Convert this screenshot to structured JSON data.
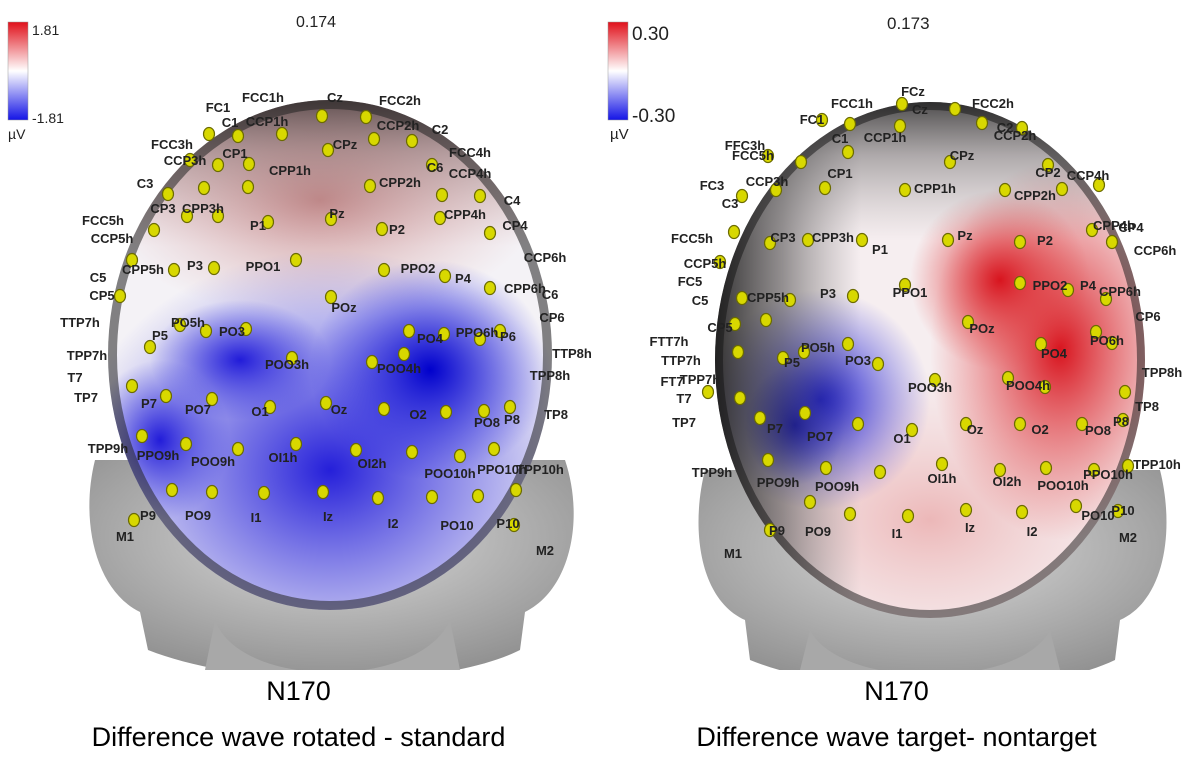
{
  "panels": [
    {
      "id": "left",
      "time": "0.174",
      "scale": {
        "max": "1.81",
        "min": "-1.81",
        "unit": "µV"
      },
      "component": "N170",
      "caption": "Difference wave rotated - standard",
      "electrodes": [
        [
          "FCC1h",
          263,
          102
        ],
        [
          "Cz",
          335,
          102
        ],
        [
          "FCC2h",
          400,
          105
        ],
        [
          "FC1",
          218,
          112
        ],
        [
          "C1",
          230,
          127
        ],
        [
          "CCP1h",
          267,
          126
        ],
        [
          "CCP2h",
          398,
          130
        ],
        [
          "C2",
          440,
          134
        ],
        [
          "FCC3h",
          172,
          149
        ],
        [
          "CPz",
          345,
          149
        ],
        [
          "CCP3h",
          185,
          165
        ],
        [
          "CP1",
          235,
          158
        ],
        [
          "FCC4h",
          470,
          157
        ],
        [
          "C6",
          435,
          172
        ],
        [
          "CPP1h",
          290,
          175
        ],
        [
          "CCP4h",
          470,
          178
        ],
        [
          "C3",
          145,
          188
        ],
        [
          "CPP2h",
          400,
          187
        ],
        [
          "C4",
          512,
          205
        ],
        [
          "FCC5h",
          103,
          225
        ],
        [
          "CP3",
          163,
          213
        ],
        [
          "CPP3h",
          203,
          213
        ],
        [
          "P1",
          258,
          230
        ],
        [
          "Pz",
          337,
          218
        ],
        [
          "P2",
          397,
          234
        ],
        [
          "CPP4h",
          465,
          219
        ],
        [
          "CP4",
          515,
          230
        ],
        [
          "CCP5h",
          112,
          243
        ],
        [
          "CCP6h",
          545,
          262
        ],
        [
          "C5",
          98,
          282
        ],
        [
          "CPP5h",
          143,
          274
        ],
        [
          "P3",
          195,
          270
        ],
        [
          "PPO1",
          263,
          271
        ],
        [
          "PPO2",
          418,
          273
        ],
        [
          "P4",
          463,
          283
        ],
        [
          "CPP6h",
          525,
          293
        ],
        [
          "C6",
          550,
          299
        ],
        [
          "CP5",
          102,
          300
        ],
        [
          "PO5h",
          188,
          327
        ],
        [
          "POz",
          344,
          312
        ],
        [
          "CP6",
          552,
          322
        ],
        [
          "TTP7h",
          80,
          327
        ],
        [
          "P5",
          160,
          340
        ],
        [
          "PO3",
          232,
          336
        ],
        [
          "PO4",
          430,
          343
        ],
        [
          "PPO6h",
          477,
          337
        ],
        [
          "P6",
          508,
          341
        ],
        [
          "TPP7h",
          87,
          360
        ],
        [
          "TTP8h",
          572,
          358
        ],
        [
          "POO3h",
          287,
          369
        ],
        [
          "POO4h",
          399,
          373
        ],
        [
          "T7",
          75,
          382
        ],
        [
          "TPP8h",
          550,
          380
        ],
        [
          "TP7",
          86,
          402
        ],
        [
          "P7",
          149,
          408
        ],
        [
          "PO7",
          198,
          414
        ],
        [
          "O1",
          260,
          416
        ],
        [
          "Oz",
          339,
          414
        ],
        [
          "O2",
          418,
          419
        ],
        [
          "PO8",
          487,
          427
        ],
        [
          "P8",
          512,
          424
        ],
        [
          "TP8",
          556,
          419
        ],
        [
          "TPP9h",
          108,
          453
        ],
        [
          "PPO9h",
          158,
          460
        ],
        [
          "POO9h",
          213,
          466
        ],
        [
          "OI1h",
          283,
          462
        ],
        [
          "OI2h",
          372,
          468
        ],
        [
          "POO10h",
          450,
          478
        ],
        [
          "PPO10h",
          502,
          474
        ],
        [
          "TPP10h",
          540,
          474
        ],
        [
          "P9",
          148,
          520
        ],
        [
          "PO9",
          198,
          520
        ],
        [
          "I1",
          256,
          522
        ],
        [
          "Iz",
          328,
          521
        ],
        [
          "I2",
          393,
          528
        ],
        [
          "PO10",
          457,
          530
        ],
        [
          "P10",
          508,
          528
        ],
        [
          "M1",
          125,
          541
        ],
        [
          "M2",
          545,
          555
        ]
      ],
      "sensor_dots": [
        [
          322,
          116
        ],
        [
          366,
          117
        ],
        [
          209,
          134
        ],
        [
          238,
          136
        ],
        [
          282,
          134
        ],
        [
          374,
          139
        ],
        [
          412,
          141
        ],
        [
          190,
          160
        ],
        [
          218,
          165
        ],
        [
          249,
          164
        ],
        [
          328,
          150
        ],
        [
          432,
          165
        ],
        [
          168,
          194
        ],
        [
          204,
          188
        ],
        [
          248,
          187
        ],
        [
          370,
          186
        ],
        [
          442,
          195
        ],
        [
          480,
          196
        ],
        [
          154,
          230
        ],
        [
          187,
          216
        ],
        [
          218,
          216
        ],
        [
          268,
          222
        ],
        [
          331,
          219
        ],
        [
          382,
          229
        ],
        [
          440,
          218
        ],
        [
          490,
          233
        ],
        [
          132,
          260
        ],
        [
          174,
          270
        ],
        [
          214,
          268
        ],
        [
          296,
          260
        ],
        [
          384,
          270
        ],
        [
          445,
          276
        ],
        [
          490,
          288
        ],
        [
          120,
          296
        ],
        [
          180,
          325
        ],
        [
          206,
          331
        ],
        [
          246,
          329
        ],
        [
          331,
          297
        ],
        [
          409,
          331
        ],
        [
          444,
          334
        ],
        [
          480,
          339
        ],
        [
          500,
          331
        ],
        [
          150,
          347
        ],
        [
          292,
          358
        ],
        [
          372,
          362
        ],
        [
          404,
          354
        ],
        [
          132,
          386
        ],
        [
          166,
          396
        ],
        [
          212,
          399
        ],
        [
          270,
          407
        ],
        [
          326,
          403
        ],
        [
          384,
          409
        ],
        [
          446,
          412
        ],
        [
          484,
          411
        ],
        [
          510,
          407
        ],
        [
          142,
          436
        ],
        [
          186,
          444
        ],
        [
          238,
          449
        ],
        [
          296,
          444
        ],
        [
          356,
          450
        ],
        [
          412,
          452
        ],
        [
          460,
          456
        ],
        [
          494,
          449
        ],
        [
          172,
          490
        ],
        [
          212,
          492
        ],
        [
          264,
          493
        ],
        [
          323,
          492
        ],
        [
          378,
          498
        ],
        [
          432,
          497
        ],
        [
          478,
          496
        ],
        [
          516,
          490
        ],
        [
          514,
          525
        ],
        [
          134,
          520
        ]
      ]
    },
    {
      "id": "right",
      "time": "0.173",
      "scale": {
        "max": "0.30",
        "min": "-0.30",
        "unit": "µV"
      },
      "component": "N170",
      "caption": "Difference wave target- nontarget",
      "electrodes": [
        [
          "FCz",
          913,
          96
        ],
        [
          "FCC1h",
          852,
          108
        ],
        [
          "Cz",
          920,
          114
        ],
        [
          "FCC2h",
          993,
          108
        ],
        [
          "FC1",
          812,
          124
        ],
        [
          "C1",
          840,
          143
        ],
        [
          "CCP1h",
          885,
          142
        ],
        [
          "CCP2h",
          1015,
          140
        ],
        [
          "C2",
          1005,
          132
        ],
        [
          "FFC3h",
          745,
          150
        ],
        [
          "FCC5h",
          753,
          160
        ],
        [
          "CPz",
          962,
          160
        ],
        [
          "FC3",
          712,
          190
        ],
        [
          "CCP3h",
          767,
          186
        ],
        [
          "CP1",
          840,
          178
        ],
        [
          "CPP1h",
          935,
          193
        ],
        [
          "CP2",
          1048,
          177
        ],
        [
          "CCP4h",
          1088,
          180
        ],
        [
          "CPP2h",
          1035,
          200
        ],
        [
          "C3",
          730,
          208
        ],
        [
          "CPP4h",
          1114,
          230
        ],
        [
          "CP4",
          1131,
          232
        ],
        [
          "FCC5h",
          692,
          243
        ],
        [
          "CP3",
          783,
          242
        ],
        [
          "CPP3h",
          833,
          242
        ],
        [
          "P1",
          880,
          254
        ],
        [
          "Pz",
          965,
          240
        ],
        [
          "P2",
          1045,
          245
        ],
        [
          "CCP6h",
          1155,
          255
        ],
        [
          "CCP5h",
          705,
          268
        ],
        [
          "FC5",
          690,
          286
        ],
        [
          "CPP5h",
          768,
          302
        ],
        [
          "P3",
          828,
          298
        ],
        [
          "PPO1",
          910,
          297
        ],
        [
          "PPO2",
          1050,
          290
        ],
        [
          "P4",
          1088,
          290
        ],
        [
          "CPP6h",
          1120,
          296
        ],
        [
          "C5",
          700,
          305
        ],
        [
          "CP5",
          720,
          332
        ],
        [
          "CP6",
          1148,
          321
        ],
        [
          "POz",
          982,
          333
        ],
        [
          "FTT7h",
          669,
          346
        ],
        [
          "PO5h",
          818,
          352
        ],
        [
          "PO3",
          858,
          365
        ],
        [
          "PO6h",
          1107,
          345
        ],
        [
          "TTP7h",
          681,
          365
        ],
        [
          "P5",
          792,
          367
        ],
        [
          "PO4",
          1054,
          358
        ],
        [
          "FT7",
          672,
          386
        ],
        [
          "TPP7h",
          700,
          384
        ],
        [
          "POO3h",
          930,
          392
        ],
        [
          "POO4h",
          1028,
          390
        ],
        [
          "TPP8h",
          1162,
          377
        ],
        [
          "T7",
          684,
          403
        ],
        [
          "TP8",
          1147,
          411
        ],
        [
          "TP7",
          684,
          427
        ],
        [
          "P7",
          775,
          433
        ],
        [
          "PO7",
          820,
          441
        ],
        [
          "O1",
          902,
          443
        ],
        [
          "Oz",
          975,
          434
        ],
        [
          "O2",
          1040,
          434
        ],
        [
          "PO8",
          1098,
          435
        ],
        [
          "P8",
          1121,
          426
        ],
        [
          "TPP10h",
          1157,
          469
        ],
        [
          "TPP9h",
          712,
          477
        ],
        [
          "PPO9h",
          778,
          487
        ],
        [
          "POO9h",
          837,
          491
        ],
        [
          "OI1h",
          942,
          483
        ],
        [
          "OI2h",
          1007,
          486
        ],
        [
          "POO10h",
          1063,
          490
        ],
        [
          "PPO10h",
          1108,
          479
        ],
        [
          "P9",
          777,
          535
        ],
        [
          "PO9",
          818,
          536
        ],
        [
          "I1",
          897,
          538
        ],
        [
          "Iz",
          970,
          532
        ],
        [
          "I2",
          1032,
          536
        ],
        [
          "PO10",
          1098,
          520
        ],
        [
          "P10",
          1123,
          515
        ],
        [
          "M1",
          733,
          558
        ],
        [
          "M2",
          1128,
          542
        ]
      ],
      "sensor_dots": [
        [
          902,
          104
        ],
        [
          955,
          109
        ],
        [
          822,
          120
        ],
        [
          850,
          124
        ],
        [
          900,
          126
        ],
        [
          982,
          123
        ],
        [
          1022,
          128
        ],
        [
          768,
          156
        ],
        [
          801,
          162
        ],
        [
          848,
          152
        ],
        [
          950,
          162
        ],
        [
          1048,
          165
        ],
        [
          742,
          196
        ],
        [
          776,
          190
        ],
        [
          825,
          188
        ],
        [
          905,
          190
        ],
        [
          1005,
          190
        ],
        [
          1062,
          189
        ],
        [
          1099,
          185
        ],
        [
          734,
          232
        ],
        [
          770,
          243
        ],
        [
          808,
          240
        ],
        [
          862,
          240
        ],
        [
          948,
          240
        ],
        [
          1020,
          242
        ],
        [
          1092,
          230
        ],
        [
          1112,
          242
        ],
        [
          720,
          262
        ],
        [
          742,
          298
        ],
        [
          790,
          300
        ],
        [
          853,
          296
        ],
        [
          905,
          285
        ],
        [
          1020,
          283
        ],
        [
          1068,
          290
        ],
        [
          1106,
          299
        ],
        [
          735,
          324
        ],
        [
          766,
          320
        ],
        [
          848,
          344
        ],
        [
          968,
          322
        ],
        [
          1041,
          344
        ],
        [
          1096,
          332
        ],
        [
          1112,
          343
        ],
        [
          738,
          352
        ],
        [
          783,
          358
        ],
        [
          804,
          352
        ],
        [
          878,
          364
        ],
        [
          935,
          380
        ],
        [
          1008,
          378
        ],
        [
          1045,
          387
        ],
        [
          708,
          392
        ],
        [
          740,
          398
        ],
        [
          1125,
          392
        ],
        [
          760,
          418
        ],
        [
          805,
          413
        ],
        [
          858,
          424
        ],
        [
          912,
          430
        ],
        [
          966,
          424
        ],
        [
          1020,
          424
        ],
        [
          1082,
          424
        ],
        [
          1123,
          420
        ],
        [
          768,
          460
        ],
        [
          826,
          468
        ],
        [
          880,
          472
        ],
        [
          942,
          464
        ],
        [
          1000,
          470
        ],
        [
          1046,
          468
        ],
        [
          1094,
          470
        ],
        [
          1128,
          466
        ],
        [
          770,
          530
        ],
        [
          810,
          502
        ],
        [
          850,
          514
        ],
        [
          908,
          516
        ],
        [
          966,
          510
        ],
        [
          1022,
          512
        ],
        [
          1076,
          506
        ],
        [
          1118,
          511
        ]
      ]
    }
  ]
}
